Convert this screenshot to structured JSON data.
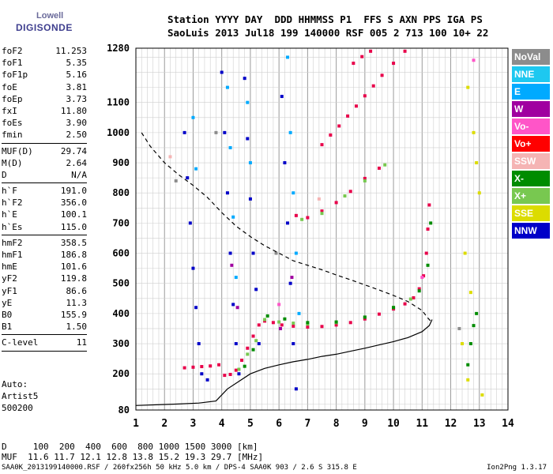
{
  "logo": {
    "line1": "Lowell",
    "line2": "DIGISONDE"
  },
  "header": {
    "line1": "Station YYYY DAY  DDD HHMMSS P1  FFS S AXN PPS IGA PS",
    "line2": "SaoLuis 2013 Jul18 199 140000 RSF 005 2 713 100 10+ 22"
  },
  "params_groups": [
    [
      [
        "foF2",
        "11.253"
      ],
      [
        "foF1",
        "5.35"
      ],
      [
        "foF1p",
        "5.16"
      ],
      [
        "foE",
        "3.81"
      ],
      [
        "foEp",
        "3.73"
      ],
      [
        "fxI",
        "11.80"
      ],
      [
        "foEs",
        "3.90"
      ],
      [
        "fmin",
        "2.50"
      ]
    ],
    [
      [
        "MUF(D)",
        "29.74"
      ],
      [
        "M(D)",
        "2.64"
      ],
      [
        "D",
        "N/A"
      ]
    ],
    [
      [
        "h`F",
        "191.0"
      ],
      [
        "h`F2",
        "356.0"
      ],
      [
        "h`E",
        "100.1"
      ],
      [
        "h`Es",
        "115.0"
      ]
    ],
    [
      [
        "hmF2",
        "358.5"
      ],
      [
        "hmF1",
        "186.8"
      ],
      [
        "hmE",
        "101.6"
      ],
      [
        "yF2",
        "119.8"
      ],
      [
        "yF1",
        "86.6"
      ],
      [
        "yE",
        "11.3"
      ],
      [
        "B0",
        "155.9"
      ],
      [
        "B1",
        "1.50"
      ]
    ],
    [
      [
        "C-level",
        "11"
      ]
    ]
  ],
  "info": {
    "line1": "Auto:",
    "line2": "Artist5",
    "line3": "500200"
  },
  "legend": [
    {
      "label": "NoVal",
      "color": "#8c8c8c"
    },
    {
      "label": "NNE",
      "color": "#1ec8f0"
    },
    {
      "label": "E",
      "color": "#00aaff"
    },
    {
      "label": "W",
      "color": "#a000a0"
    },
    {
      "label": "Vo-",
      "color": "#ff55c8"
    },
    {
      "label": "Vo+",
      "color": "#ff0000"
    },
    {
      "label": "SSW",
      "color": "#f5b4b4"
    },
    {
      "label": "X-",
      "color": "#008c00"
    },
    {
      "label": "X+",
      "color": "#78c850"
    },
    {
      "label": "SSE",
      "color": "#dcdc00"
    },
    {
      "label": "NNW",
      "color": "#0000c8"
    }
  ],
  "footer": {
    "d_line": "D     100  200  400  600  800 1000 1500 3000 [km]",
    "muf_line": "MUF  11.6 11.7 12.1 12.8 13.8 15.2 19.3 29.7 [MHz]",
    "file_line": "SAA0K_2013199140000.RSF / 260fx256h 50 kHz 5.0 km / DPS-4 SAA0K 903 / 2.6 S 315.8 E",
    "version": "Ion2Png 1.3.17"
  },
  "chart_data": {
    "type": "scatter",
    "xlim": [
      1,
      14
    ],
    "ylim": [
      80,
      1280
    ],
    "x_ticks": [
      1,
      2,
      3,
      4,
      5,
      6,
      7,
      8,
      9,
      10,
      11,
      12,
      13,
      14
    ],
    "y_ticks": [
      80,
      200,
      300,
      400,
      500,
      600,
      700,
      800,
      900,
      1000,
      1100,
      1280
    ],
    "grid": true,
    "legend_position": "right",
    "series": [
      {
        "name": "Vo+",
        "color": "#e8004a",
        "points": [
          [
            2.7,
            220
          ],
          [
            3.0,
            222
          ],
          [
            3.3,
            224
          ],
          [
            3.6,
            226
          ],
          [
            3.9,
            230
          ],
          [
            4.1,
            195
          ],
          [
            4.3,
            198
          ],
          [
            4.5,
            212
          ],
          [
            4.7,
            245
          ],
          [
            4.9,
            285
          ],
          [
            5.1,
            325
          ],
          [
            5.3,
            362
          ],
          [
            5.5,
            375
          ],
          [
            5.8,
            370
          ],
          [
            6.1,
            362
          ],
          [
            6.5,
            358
          ],
          [
            7.0,
            355
          ],
          [
            7.5,
            357
          ],
          [
            8.0,
            362
          ],
          [
            8.5,
            370
          ],
          [
            9.0,
            382
          ],
          [
            9.5,
            398
          ],
          [
            10.0,
            415
          ],
          [
            10.4,
            432
          ],
          [
            10.7,
            452
          ],
          [
            10.9,
            482
          ],
          [
            11.05,
            525
          ],
          [
            11.15,
            600
          ],
          [
            11.2,
            680
          ],
          [
            11.25,
            760
          ],
          [
            6.6,
            725
          ],
          [
            7.0,
            718
          ],
          [
            7.5,
            740
          ],
          [
            8.0,
            768
          ],
          [
            8.5,
            805
          ],
          [
            9.0,
            848
          ],
          [
            9.5,
            882
          ],
          [
            7.5,
            960
          ],
          [
            7.8,
            992
          ],
          [
            8.1,
            1022
          ],
          [
            8.4,
            1055
          ],
          [
            8.7,
            1088
          ],
          [
            9.0,
            1122
          ],
          [
            9.3,
            1155
          ],
          [
            9.6,
            1190
          ],
          [
            10.0,
            1230
          ],
          [
            10.4,
            1270
          ],
          [
            8.6,
            1230
          ],
          [
            8.9,
            1252
          ],
          [
            9.2,
            1270
          ]
        ]
      },
      {
        "name": "X+",
        "color": "#78c850",
        "points": [
          [
            4.6,
            215
          ],
          [
            4.9,
            265
          ],
          [
            5.2,
            310
          ],
          [
            5.5,
            380
          ],
          [
            6.0,
            372
          ],
          [
            6.5,
            368
          ],
          [
            7.0,
            365
          ],
          [
            8.0,
            370
          ],
          [
            9.0,
            388
          ],
          [
            10.0,
            420
          ],
          [
            10.6,
            448
          ],
          [
            6.8,
            712
          ],
          [
            7.5,
            732
          ],
          [
            8.3,
            790
          ],
          [
            9.0,
            840
          ],
          [
            9.7,
            893
          ]
        ]
      },
      {
        "name": "X-",
        "color": "#008c00",
        "points": [
          [
            4.8,
            225
          ],
          [
            5.1,
            280
          ],
          [
            5.6,
            392
          ],
          [
            6.2,
            382
          ],
          [
            7.0,
            370
          ],
          [
            8.0,
            372
          ],
          [
            9.0,
            388
          ],
          [
            10.0,
            420
          ],
          [
            10.9,
            475
          ],
          [
            11.2,
            560
          ],
          [
            11.3,
            700
          ],
          [
            12.6,
            230
          ],
          [
            12.7,
            300
          ],
          [
            12.8,
            360
          ],
          [
            12.9,
            400
          ]
        ]
      },
      {
        "name": "NNW",
        "color": "#0000c8",
        "points": [
          [
            2.7,
            1000
          ],
          [
            2.8,
            850
          ],
          [
            2.9,
            700
          ],
          [
            3.0,
            550
          ],
          [
            3.1,
            420
          ],
          [
            3.2,
            300
          ],
          [
            3.3,
            200
          ],
          [
            3.5,
            180
          ],
          [
            4.0,
            1200
          ],
          [
            4.1,
            1000
          ],
          [
            4.2,
            800
          ],
          [
            4.3,
            600
          ],
          [
            4.4,
            430
          ],
          [
            4.5,
            300
          ],
          [
            4.6,
            200
          ],
          [
            4.8,
            1180
          ],
          [
            4.9,
            980
          ],
          [
            5.0,
            780
          ],
          [
            5.1,
            600
          ],
          [
            5.2,
            480
          ],
          [
            5.3,
            300
          ],
          [
            6.1,
            1120
          ],
          [
            6.2,
            900
          ],
          [
            6.3,
            700
          ],
          [
            6.4,
            500
          ],
          [
            6.5,
            300
          ],
          [
            6.6,
            150
          ]
        ]
      },
      {
        "name": "E",
        "color": "#00aaff",
        "points": [
          [
            3.0,
            1050
          ],
          [
            3.1,
            880
          ],
          [
            4.2,
            1150
          ],
          [
            4.3,
            950
          ],
          [
            4.4,
            720
          ],
          [
            4.5,
            520
          ],
          [
            4.9,
            1100
          ],
          [
            5.0,
            900
          ],
          [
            6.3,
            1250
          ],
          [
            6.4,
            1000
          ],
          [
            6.5,
            800
          ],
          [
            6.6,
            600
          ],
          [
            6.7,
            400
          ]
        ]
      },
      {
        "name": "SSE",
        "color": "#dcdc00",
        "points": [
          [
            12.6,
            1150
          ],
          [
            12.8,
            1000
          ],
          [
            12.9,
            900
          ],
          [
            13.0,
            800
          ],
          [
            12.5,
            600
          ],
          [
            12.7,
            470
          ],
          [
            12.4,
            300
          ],
          [
            12.6,
            180
          ],
          [
            13.1,
            130
          ]
        ]
      },
      {
        "name": "W",
        "color": "#a000a0",
        "points": [
          [
            4.35,
            560
          ],
          [
            4.55,
            420
          ],
          [
            6.05,
            350
          ],
          [
            6.45,
            520
          ]
        ]
      },
      {
        "name": "Vo-",
        "color": "#ff55c8",
        "points": [
          [
            6.0,
            430
          ],
          [
            11.0,
            520
          ],
          [
            12.8,
            1240
          ]
        ]
      },
      {
        "name": "SSW",
        "color": "#f5b4b4",
        "points": [
          [
            2.2,
            920
          ],
          [
            7.4,
            780
          ]
        ]
      },
      {
        "name": "NoVal",
        "color": "#8c8c8c",
        "points": [
          [
            2.4,
            840
          ],
          [
            3.8,
            1000
          ],
          [
            5.9,
            600
          ],
          [
            12.3,
            350
          ]
        ]
      }
    ],
    "profile_curve": {
      "color": "#000000",
      "points": [
        [
          1.0,
          95
        ],
        [
          2.5,
          100
        ],
        [
          3.2,
          103
        ],
        [
          3.8,
          110
        ],
        [
          4.2,
          150
        ],
        [
          4.6,
          175
        ],
        [
          5.0,
          200
        ],
        [
          5.5,
          218
        ],
        [
          6.0,
          230
        ],
        [
          6.5,
          240
        ],
        [
          7.0,
          248
        ],
        [
          7.5,
          258
        ],
        [
          8.0,
          265
        ],
        [
          8.5,
          275
        ],
        [
          9.0,
          285
        ],
        [
          9.5,
          296
        ],
        [
          10.0,
          307
        ],
        [
          10.5,
          320
        ],
        [
          11.0,
          340
        ],
        [
          11.25,
          360
        ],
        [
          11.35,
          380
        ]
      ]
    },
    "muf_curve": {
      "color": "#000000",
      "points": [
        [
          1.2,
          1000
        ],
        [
          1.5,
          955
        ],
        [
          2.0,
          900
        ],
        [
          2.5,
          860
        ],
        [
          3.0,
          825
        ],
        [
          3.5,
          785
        ],
        [
          4.0,
          735
        ],
        [
          4.5,
          690
        ],
        [
          5.0,
          655
        ],
        [
          5.5,
          625
        ],
        [
          6.0,
          600
        ],
        [
          6.5,
          575
        ],
        [
          7.0,
          560
        ],
        [
          7.5,
          545
        ],
        [
          8.0,
          528
        ],
        [
          8.5,
          512
        ],
        [
          9.0,
          495
        ],
        [
          9.5,
          478
        ],
        [
          10.0,
          460
        ],
        [
          10.5,
          440
        ],
        [
          11.0,
          410
        ],
        [
          11.2,
          385
        ],
        [
          11.3,
          375
        ]
      ]
    }
  }
}
